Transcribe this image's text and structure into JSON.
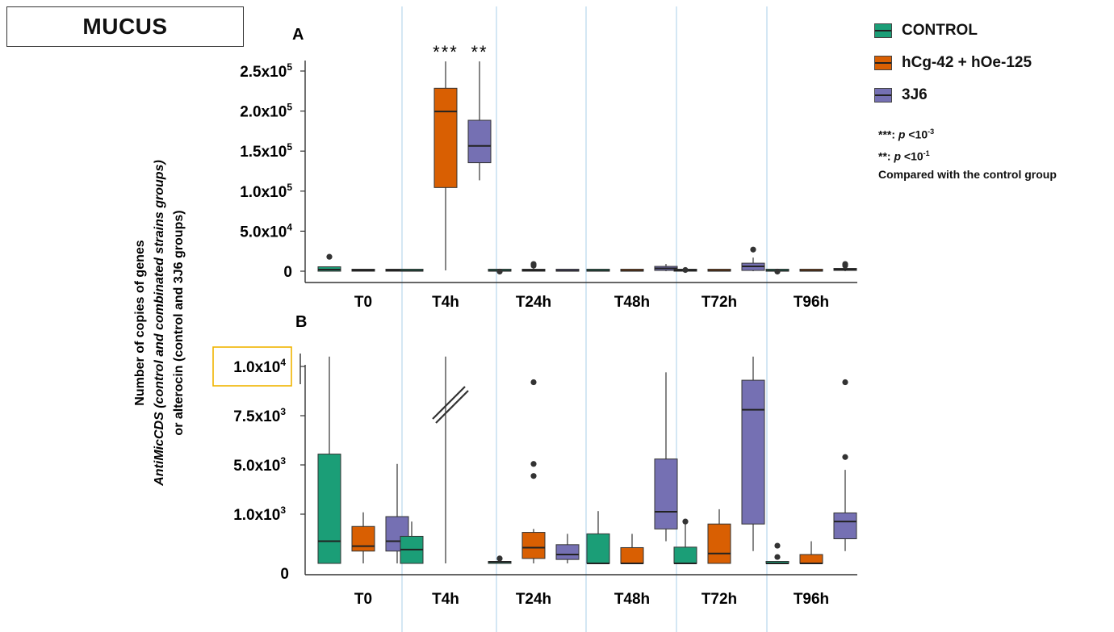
{
  "figure_title": "MUCUS",
  "ylabel_lines": [
    "Number of copies of genes",
    "AntiMicCDS (control and combinated strains  groups)",
    "or alterocin (control and 3J6 groups)"
  ],
  "legend": {
    "items": [
      {
        "label": "CONTROL",
        "color": "#1b9e77"
      },
      {
        "label": "hCg-42 + hOe-125",
        "color": "#d95f02"
      },
      {
        "label": "3J6",
        "color": "#7570b3"
      }
    ]
  },
  "notes": {
    "line1_stars": "***:",
    "line1_p": "p",
    "line1_rest": " <10",
    "line1_exp": "-3",
    "line2_stars": "**:",
    "line2_p": "p",
    "line2_rest": " <10",
    "line2_exp": "-1",
    "line3": "Compared with the control group"
  },
  "colors": {
    "control": "#1b9e77",
    "combined": "#d95f02",
    "strain": "#7570b3",
    "separator": "#a8cfe8",
    "highlight": "#f0b400"
  },
  "chart_data": [
    {
      "panel": "A",
      "type": "box",
      "categories": [
        "T0",
        "T4h",
        "T24h",
        "T48h",
        "T72h",
        "T96h"
      ],
      "series_labels": [
        "CONTROL",
        "hCg-42 + hOe-125",
        "3J6"
      ],
      "yticks": [
        {
          "value": 0,
          "base": "0",
          "exp": ""
        },
        {
          "value": 50000,
          "base": "5.0x10",
          "exp": "4"
        },
        {
          "value": 100000,
          "base": "1.0x10",
          "exp": "5"
        },
        {
          "value": 150000,
          "base": "1.5x10",
          "exp": "5"
        },
        {
          "value": 200000,
          "base": "2.0x10",
          "exp": "5"
        },
        {
          "value": 250000,
          "base": "2.5x10",
          "exp": "5"
        }
      ],
      "ylim": [
        -5000,
        262000
      ],
      "boxes": [
        {
          "cat": 0,
          "series": 0,
          "min": 0,
          "q1": 0,
          "median": 2000,
          "q3": 5500,
          "max": 5500,
          "outliers": [
            18000
          ]
        },
        {
          "cat": 0,
          "series": 1,
          "min": 0,
          "q1": 0,
          "median": 1000,
          "q3": 2500,
          "max": 2500,
          "outliers": []
        },
        {
          "cat": 0,
          "series": 2,
          "min": 0,
          "q1": 0,
          "median": 1000,
          "q3": 2500,
          "max": 3000,
          "outliers": []
        },
        {
          "cat": 1,
          "series": 0,
          "min": 0,
          "q1": 0,
          "median": 500,
          "q3": 1000,
          "max": 1000,
          "outliers": []
        },
        {
          "cat": 1,
          "series": 1,
          "min": 1000,
          "q1": 104500,
          "median": 199500,
          "q3": 228500,
          "max": 262000,
          "outliers": []
        },
        {
          "cat": 1,
          "series": 2,
          "min": 113500,
          "q1": 135500,
          "median": 156500,
          "q3": 188500,
          "max": 262000,
          "outliers": []
        },
        {
          "cat": 2,
          "series": 0,
          "min": 0,
          "q1": 0,
          "median": 500,
          "q3": 1500,
          "max": 1500,
          "outliers": [
            -500
          ]
        },
        {
          "cat": 2,
          "series": 1,
          "min": 0,
          "q1": 0,
          "median": 1000,
          "q3": 2500,
          "max": 4500,
          "outliers": [
            7000,
            9000
          ]
        },
        {
          "cat": 2,
          "series": 2,
          "min": 0,
          "q1": 0,
          "median": 500,
          "q3": 1000,
          "max": 1000,
          "outliers": []
        },
        {
          "cat": 3,
          "series": 0,
          "min": 0,
          "q1": 0,
          "median": 500,
          "q3": 1000,
          "max": 1000,
          "outliers": []
        },
        {
          "cat": 3,
          "series": 1,
          "min": 0,
          "q1": 0,
          "median": 500,
          "q3": 1000,
          "max": 1000,
          "outliers": []
        },
        {
          "cat": 3,
          "series": 2,
          "min": 0,
          "q1": 1000,
          "median": 3500,
          "q3": 6000,
          "max": 9000,
          "outliers": []
        },
        {
          "cat": 4,
          "series": 0,
          "min": 0,
          "q1": 0,
          "median": 1000,
          "q3": 2000,
          "max": 2000,
          "outliers": [
            1500
          ]
        },
        {
          "cat": 4,
          "series": 1,
          "min": 0,
          "q1": 0,
          "median": 500,
          "q3": 1500,
          "max": 1500,
          "outliers": []
        },
        {
          "cat": 4,
          "series": 2,
          "min": 0,
          "q1": 1000,
          "median": 6000,
          "q3": 10000,
          "max": 17000,
          "outliers": [
            27000
          ]
        },
        {
          "cat": 5,
          "series": 0,
          "min": 0,
          "q1": 0,
          "median": 500,
          "q3": 1000,
          "max": 1000,
          "outliers": [
            -500
          ]
        },
        {
          "cat": 5,
          "series": 1,
          "min": 0,
          "q1": 0,
          "median": 500,
          "q3": 1000,
          "max": 1000,
          "outliers": []
        },
        {
          "cat": 5,
          "series": 2,
          "min": 0,
          "q1": 1000,
          "median": 2000,
          "q3": 3000,
          "max": 6000,
          "outliers": [
            7000,
            9000
          ]
        }
      ],
      "annotations": [
        {
          "cat": 1,
          "series": 1,
          "text": "***"
        },
        {
          "cat": 1,
          "series": 2,
          "text": "**"
        }
      ]
    },
    {
      "panel": "B",
      "type": "box",
      "categories": [
        "T0",
        "T4h",
        "T24h",
        "T48h",
        "T72h",
        "T96h"
      ],
      "series_labels": [
        "CONTROL",
        "hCg-42 + hOe-125",
        "3J6"
      ],
      "yticks": [
        {
          "value": 0,
          "base": "0",
          "exp": ""
        },
        {
          "value": 1000,
          "base": "1.0x10",
          "exp": "3"
        },
        {
          "value": 5000,
          "base": "5.0x10",
          "exp": "3"
        },
        {
          "value": 7500,
          "base": "7.5x10",
          "exp": "3"
        },
        {
          "value": 10000,
          "base": "1.0x10",
          "exp": "4"
        }
      ],
      "scale_note": "piecewise axis: ticks shown at equal spacing",
      "boxes": [
        {
          "cat": 0,
          "series": 0,
          "min": 0,
          "q1": 0,
          "median": 450,
          "q3": 5550,
          "max": 10500,
          "outliers": []
        },
        {
          "cat": 0,
          "series": 1,
          "min": 0,
          "q1": 250,
          "median": 350,
          "q3": 750,
          "max": 1150,
          "outliers": []
        },
        {
          "cat": 0,
          "series": 2,
          "min": 0,
          "q1": 250,
          "median": 450,
          "q3": 950,
          "max": 5050,
          "outliers": []
        },
        {
          "cat": 1,
          "series": 0,
          "min": 0,
          "q1": 0,
          "median": 280,
          "q3": 550,
          "max": 850,
          "outliers": []
        },
        {
          "cat": 1,
          "series": 1,
          "min": 0,
          "q1": 0,
          "median": 0,
          "q3": 0,
          "max": 10500,
          "outliers": [],
          "axis_break": true
        },
        {
          "cat": 2,
          "series": 0,
          "min": 0,
          "q1": 0,
          "median": 30,
          "q3": 30,
          "max": 30,
          "outliers": [
            100
          ]
        },
        {
          "cat": 2,
          "series": 1,
          "min": 0,
          "q1": 100,
          "median": 320,
          "q3": 630,
          "max": 700,
          "outliers": [
            4100,
            5050,
            9200
          ]
        },
        {
          "cat": 2,
          "series": 2,
          "min": 0,
          "q1": 80,
          "median": 180,
          "q3": 380,
          "max": 600,
          "outliers": []
        },
        {
          "cat": 3,
          "series": 0,
          "min": 0,
          "q1": 0,
          "median": 0,
          "q3": 600,
          "max": 1250,
          "outliers": []
        },
        {
          "cat": 3,
          "series": 1,
          "min": 0,
          "q1": 0,
          "median": 0,
          "q3": 320,
          "max": 600,
          "outliers": []
        },
        {
          "cat": 3,
          "series": 2,
          "min": 450,
          "q1": 700,
          "median": 1200,
          "q3": 5300,
          "max": 9700,
          "outliers": []
        },
        {
          "cat": 4,
          "series": 0,
          "min": 0,
          "q1": 0,
          "median": 0,
          "q3": 330,
          "max": 850,
          "outliers": [
            850
          ]
        },
        {
          "cat": 4,
          "series": 1,
          "min": 0,
          "q1": 0,
          "median": 200,
          "q3": 800,
          "max": 1400,
          "outliers": []
        },
        {
          "cat": 4,
          "series": 2,
          "min": 250,
          "q1": 800,
          "median": 7800,
          "q3": 9300,
          "max": 10500,
          "outliers": []
        },
        {
          "cat": 4,
          "series": 0,
          "min": 0,
          "q1": 0,
          "median": 0,
          "q3": 0,
          "max": 0,
          "outliers": [],
          "hidden": true
        },
        {
          "cat": 5,
          "series": 0,
          "min": 0,
          "q1": 0,
          "median": 0,
          "q3": 0,
          "max": 0,
          "outliers": [
            130,
            360
          ]
        },
        {
          "cat": 5,
          "series": 1,
          "min": 0,
          "q1": 0,
          "median": 0,
          "q3": 180,
          "max": 450,
          "outliers": []
        },
        {
          "cat": 5,
          "series": 2,
          "min": 250,
          "q1": 500,
          "median": 850,
          "q3": 1100,
          "max": 4600,
          "outliers": [
            5400,
            9200
          ]
        }
      ]
    }
  ]
}
